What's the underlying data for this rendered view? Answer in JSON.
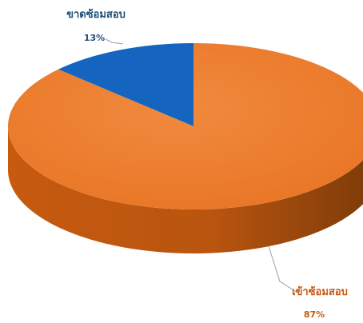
{
  "chart_data": {
    "type": "pie",
    "title": "",
    "categories": [
      "ขาดซ้อมสอบ",
      "เข้าซ้อมสอบ"
    ],
    "values": [
      13,
      87
    ],
    "labels": [
      "13%",
      "87%"
    ],
    "colors": [
      "#1565C0",
      "#ED7D31"
    ],
    "legend": "none"
  }
}
